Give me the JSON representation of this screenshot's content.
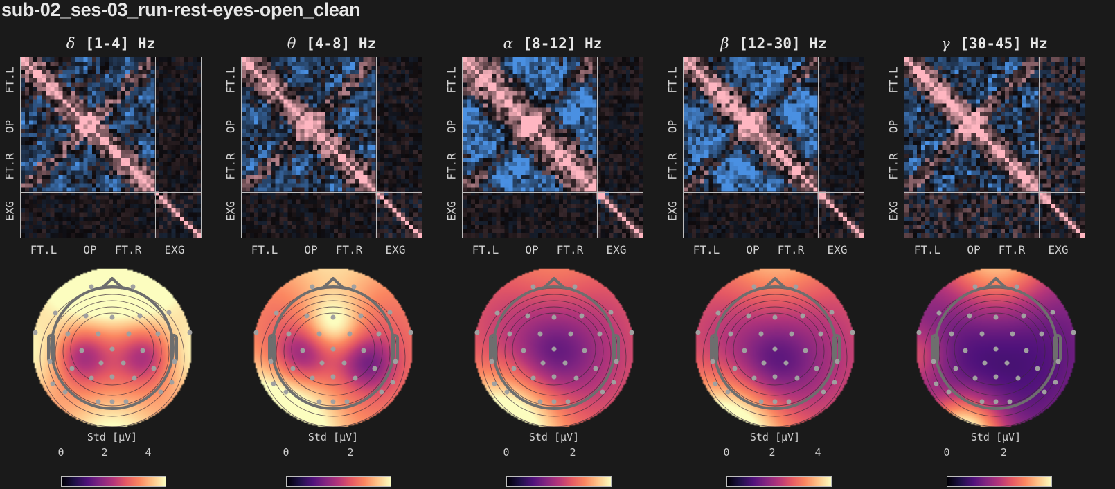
{
  "suptitle": "sub-02_ses-03_run-rest-eyes-open_clean",
  "axis_labels": {
    "y": [
      "FT.L",
      "OP",
      "FT.R",
      "EXG"
    ],
    "x": [
      "FT.L",
      "OP",
      "FT.R",
      "EXG"
    ]
  },
  "colorbar": {
    "label": "Std [μV]",
    "colormap": "magma"
  },
  "colors": {
    "background": "#1a1a1a",
    "positive": "#ffb6c1",
    "negative": "#4a90e2",
    "neutral": "#0d0d0d",
    "head_outline": "#6e6e6e",
    "sensor": "#a0a0a0"
  },
  "panels": [
    {
      "greek": "δ",
      "band": "[1-4] Hz",
      "cbar_ticks": [
        "0",
        "2",
        "4"
      ],
      "cbar_tick_pos": [
        0.0,
        0.42,
        0.84
      ]
    },
    {
      "greek": "θ",
      "band": "[4-8] Hz",
      "cbar_ticks": [
        "0",
        "2"
      ],
      "cbar_tick_pos": [
        0.0,
        0.62
      ]
    },
    {
      "greek": "α",
      "band": "[8-12] Hz",
      "cbar_ticks": [
        "0",
        "2"
      ],
      "cbar_tick_pos": [
        0.0,
        0.64
      ]
    },
    {
      "greek": "β",
      "band": "[12-30] Hz",
      "cbar_ticks": [
        "0",
        "2",
        "4"
      ],
      "cbar_tick_pos": [
        0.0,
        0.44,
        0.88
      ]
    },
    {
      "greek": "γ",
      "band": "[30-45] Hz",
      "cbar_ticks": [
        "0",
        "2"
      ],
      "cbar_tick_pos": [
        0.0,
        0.55
      ]
    }
  ],
  "chart_data": [
    {
      "type": "heatmap",
      "title": "δ [1-4] Hz",
      "description": "Channel-by-channel correlation matrix (EEG 32 ch + EXG 11 ch), diverging blue(-)/pink(+) colormap",
      "xlabel": "",
      "ylabel": "",
      "x_tick_labels": [
        "FT.L",
        "OP",
        "FT.R",
        "EXG"
      ],
      "y_tick_labels": [
        "FT.L",
        "OP",
        "FT.R",
        "EXG"
      ],
      "n_channels": 43,
      "n_eeg": 32,
      "n_exg": 11
    },
    {
      "type": "heatmap",
      "title": "θ [4-8] Hz",
      "x_tick_labels": [
        "FT.L",
        "OP",
        "FT.R",
        "EXG"
      ],
      "y_tick_labels": [
        "FT.L",
        "OP",
        "FT.R",
        "EXG"
      ],
      "n_channels": 43,
      "n_eeg": 32,
      "n_exg": 11
    },
    {
      "type": "heatmap",
      "title": "α [8-12] Hz",
      "x_tick_labels": [
        "FT.L",
        "OP",
        "FT.R",
        "EXG"
      ],
      "y_tick_labels": [
        "FT.L",
        "OP",
        "FT.R",
        "EXG"
      ],
      "n_channels": 43,
      "n_eeg": 32,
      "n_exg": 11
    },
    {
      "type": "heatmap",
      "title": "β [12-30] Hz",
      "x_tick_labels": [
        "FT.L",
        "OP",
        "FT.R",
        "EXG"
      ],
      "y_tick_labels": [
        "FT.L",
        "OP",
        "FT.R",
        "EXG"
      ],
      "n_channels": 43,
      "n_eeg": 32,
      "n_exg": 11
    },
    {
      "type": "heatmap",
      "title": "γ [30-45] Hz",
      "x_tick_labels": [
        "FT.L",
        "OP",
        "FT.R",
        "EXG"
      ],
      "y_tick_labels": [
        "FT.L",
        "OP",
        "FT.R",
        "EXG"
      ],
      "n_channels": 43,
      "n_eeg": 32,
      "n_exg": 11
    },
    {
      "type": "heatmap",
      "title": "δ [1-4] Hz topomap",
      "colorbar_label": "Std [μV]",
      "colorbar_ticks": [
        0,
        2,
        4
      ],
      "vlim": [
        0,
        4.8
      ],
      "description": "High at frontal edge and periphery, low bilateral centro-parietal"
    },
    {
      "type": "heatmap",
      "title": "θ [4-8] Hz topomap",
      "colorbar_label": "Std [μV]",
      "colorbar_ticks": [
        0,
        2
      ],
      "vlim": [
        0,
        3.2
      ],
      "description": "High frontal-midline and left-occipital periphery, low central-parietal band"
    },
    {
      "type": "heatmap",
      "title": "α [8-12] Hz topomap",
      "colorbar_label": "Std [μV]",
      "colorbar_ticks": [
        0,
        2
      ],
      "vlim": [
        0,
        3.1
      ],
      "description": "High left-occipital, low central"
    },
    {
      "type": "heatmap",
      "title": "β [12-30] Hz topomap",
      "colorbar_label": "Std [μV]",
      "colorbar_ticks": [
        0,
        2,
        4
      ],
      "vlim": [
        0,
        4.5
      ],
      "description": "High left-occipital and frontal edge, low central"
    },
    {
      "type": "heatmap",
      "title": "γ [30-45] Hz topomap",
      "colorbar_label": "Std [μV]",
      "colorbar_ticks": [
        0,
        2
      ],
      "vlim": [
        0,
        3.6
      ],
      "description": "Very low across scalp, high at frontal edge and occipital-left spot"
    }
  ]
}
